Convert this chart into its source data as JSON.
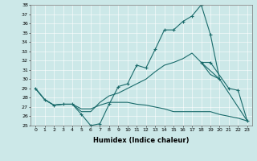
{
  "xlabel": "Humidex (Indice chaleur)",
  "ylabel": "",
  "xlim": [
    -0.5,
    23.5
  ],
  "ylim": [
    25,
    38
  ],
  "yticks": [
    25,
    26,
    27,
    28,
    29,
    30,
    31,
    32,
    33,
    34,
    35,
    36,
    37,
    38
  ],
  "xticks": [
    0,
    1,
    2,
    3,
    4,
    5,
    6,
    7,
    8,
    9,
    10,
    11,
    12,
    13,
    14,
    15,
    16,
    17,
    18,
    19,
    20,
    21,
    22,
    23
  ],
  "bg_color": "#cce8e8",
  "line_color": "#1a6b6b",
  "line1_marked": [
    29.0,
    27.8,
    27.2,
    27.3,
    27.3,
    26.2,
    25.0,
    25.2,
    27.3,
    29.2,
    29.5,
    31.5,
    31.2,
    33.2,
    35.3,
    35.3,
    36.2,
    36.8,
    38.0,
    34.8,
    30.0,
    null,
    null,
    null
  ],
  "line2_marked": [
    null,
    null,
    null,
    null,
    null,
    null,
    null,
    null,
    null,
    null,
    null,
    null,
    null,
    null,
    null,
    null,
    null,
    null,
    31.8,
    31.8,
    null,
    29.0,
    28.8,
    25.5
  ],
  "line3_plain": [
    29.0,
    27.8,
    27.2,
    27.3,
    27.3,
    26.5,
    26.5,
    27.5,
    28.2,
    28.5,
    29.0,
    29.5,
    30.0,
    30.8,
    31.5,
    31.8,
    32.2,
    32.8,
    31.8,
    30.5,
    30.0,
    28.5,
    27.0,
    25.5
  ],
  "line4_plain": [
    29.0,
    27.8,
    27.2,
    27.3,
    27.3,
    26.8,
    26.8,
    27.2,
    27.5,
    27.5,
    27.5,
    27.3,
    27.2,
    27.0,
    26.8,
    26.5,
    26.5,
    26.5,
    26.5,
    26.5,
    26.2,
    26.0,
    25.8,
    25.5
  ]
}
